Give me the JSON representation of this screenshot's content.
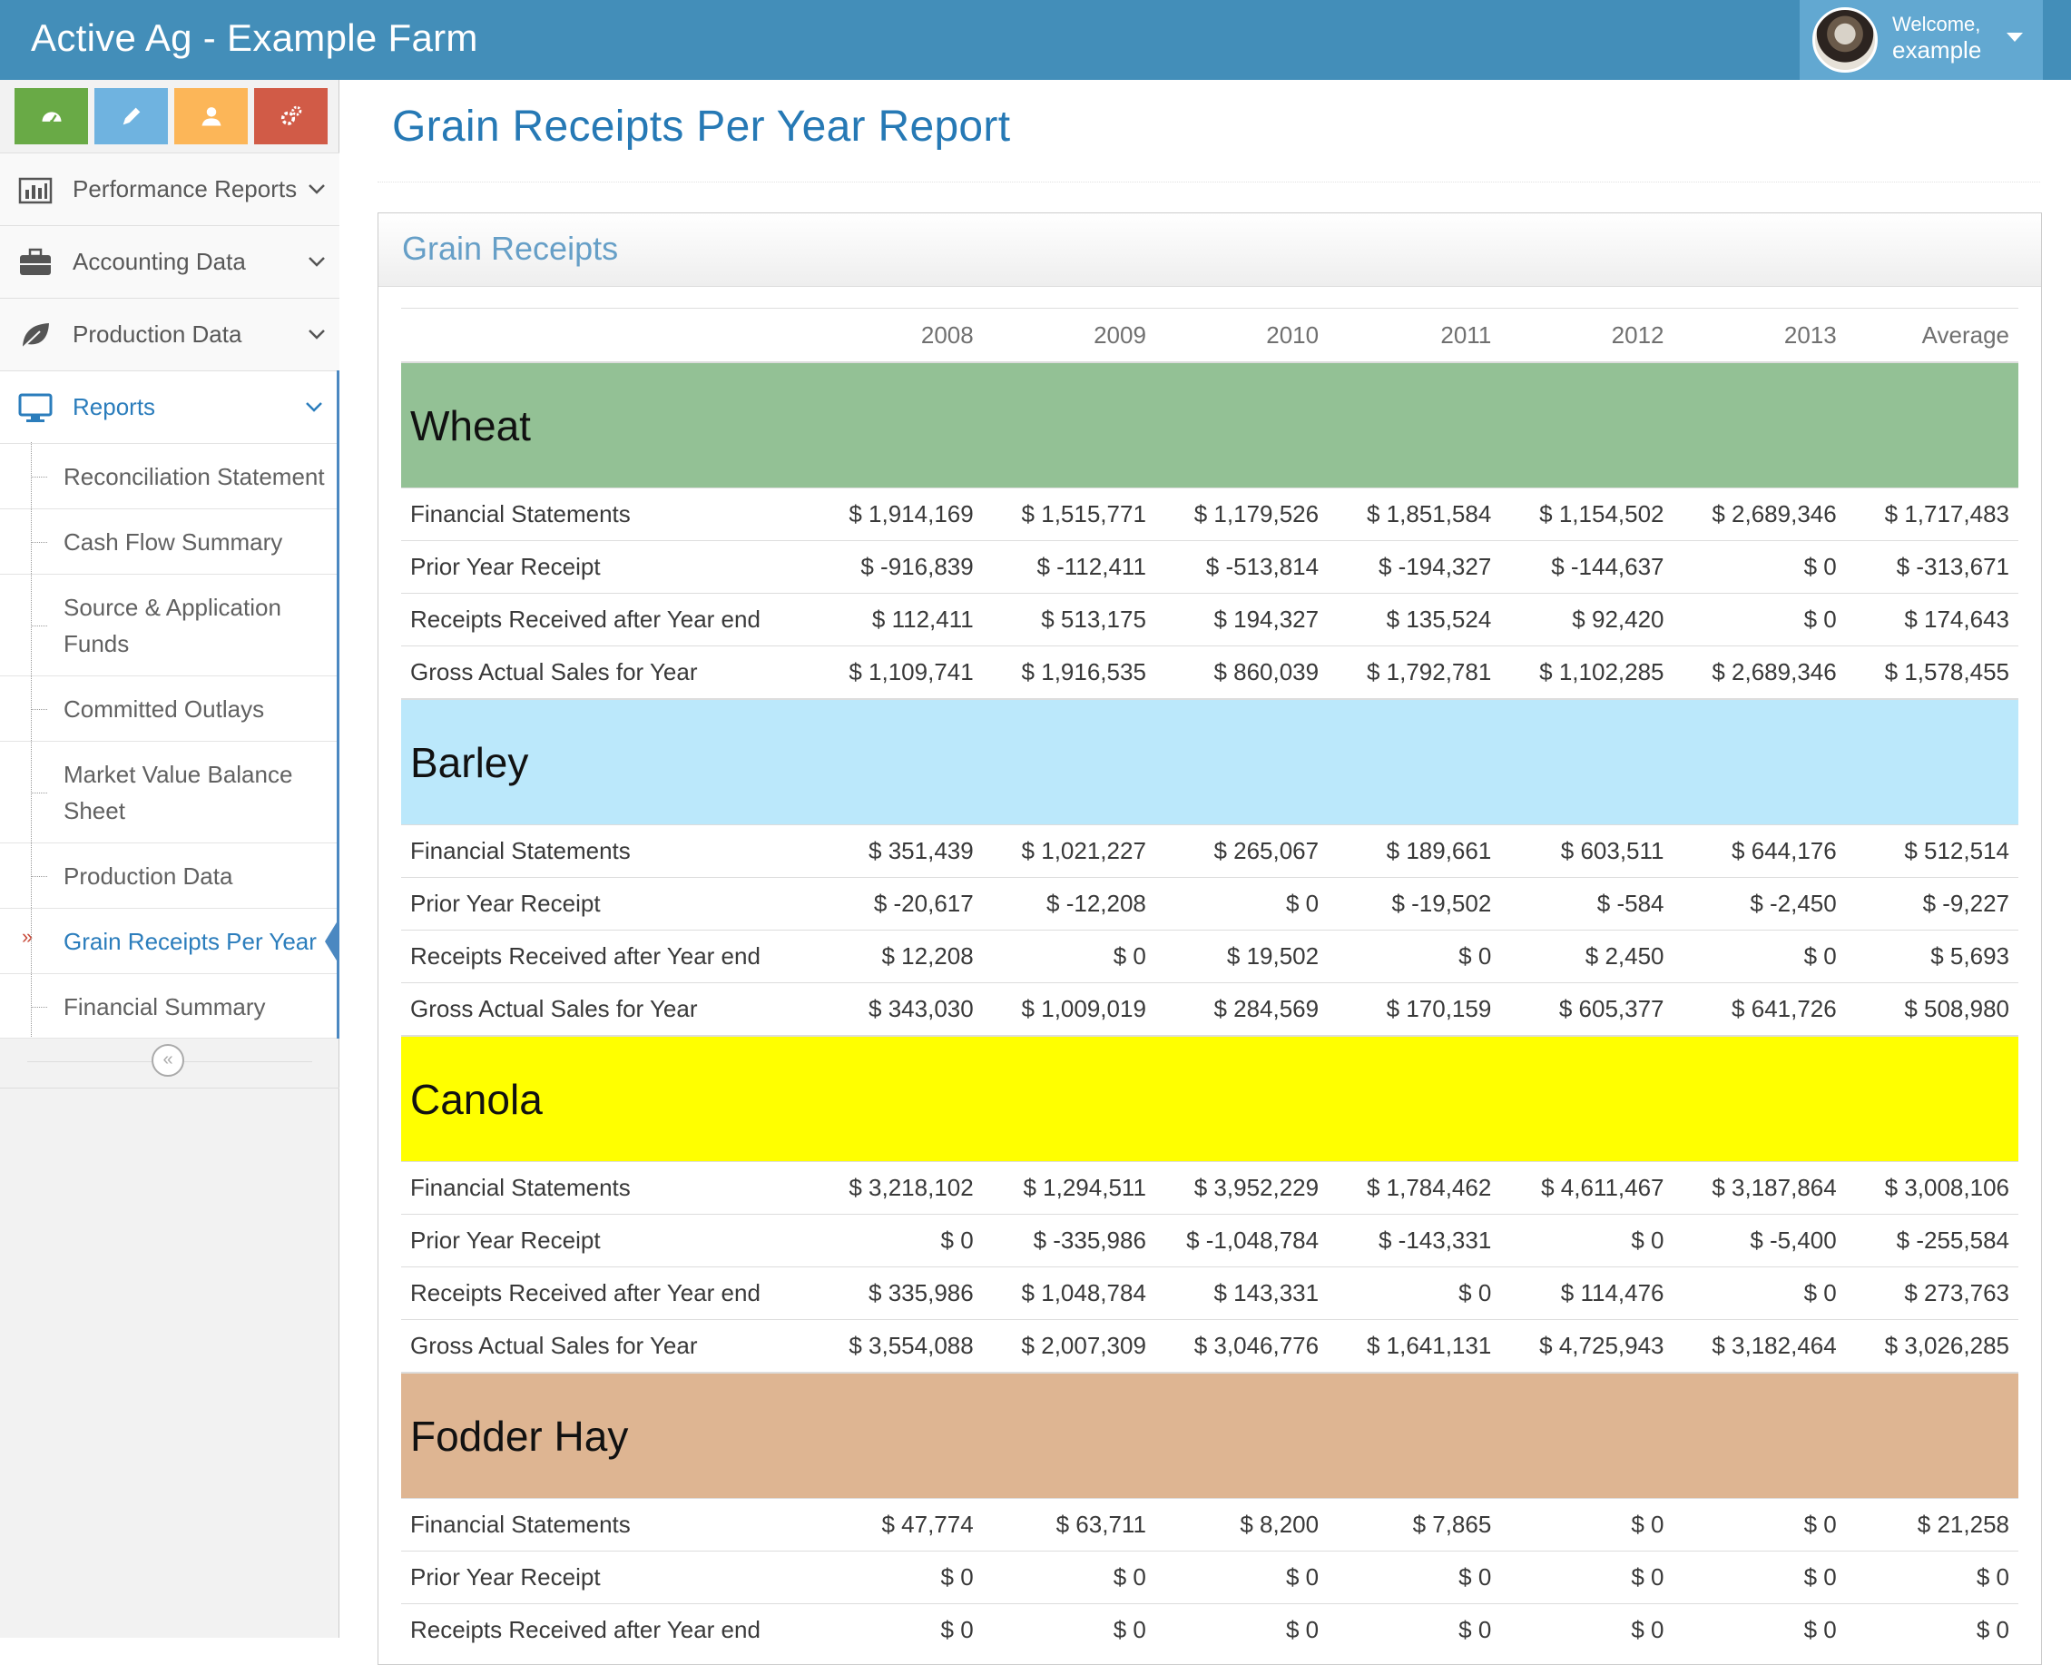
{
  "app": {
    "brand": "Active Ag - Example Farm"
  },
  "user": {
    "welcome": "Welcome,",
    "name": "example"
  },
  "shortcuts": [
    {
      "icon": "dashboard-icon",
      "color": "#69aa46"
    },
    {
      "icon": "pencil-icon",
      "color": "#6fb3e0"
    },
    {
      "icon": "user-icon",
      "color": "#fcb658"
    },
    {
      "icon": "cogs-icon",
      "color": "#d15b47"
    }
  ],
  "sidebar": {
    "items": [
      {
        "label": "Performance Reports",
        "icon": "bar-chart-icon"
      },
      {
        "label": "Accounting Data",
        "icon": "briefcase-icon"
      },
      {
        "label": "Production Data",
        "icon": "leaf-icon"
      },
      {
        "label": "Reports",
        "icon": "desktop-icon"
      }
    ],
    "submenu": [
      {
        "label": "Reconciliation Statement"
      },
      {
        "label": "Cash Flow Summary"
      },
      {
        "label": "Source & Application Funds"
      },
      {
        "label": "Committed Outlays"
      },
      {
        "label": "Market Value Balance Sheet"
      },
      {
        "label": "Production Data"
      },
      {
        "label": "Grain Receipts Per Year",
        "active": true
      },
      {
        "label": "Financial Summary"
      }
    ],
    "active_marker": "»",
    "collapse_glyph": "«"
  },
  "page": {
    "title": "Grain Receipts Per Year Report"
  },
  "widget": {
    "title": "Grain Receipts"
  },
  "table": {
    "columns": [
      "",
      "2008",
      "2009",
      "2010",
      "2011",
      "2012",
      "2013",
      "Average"
    ],
    "crops": [
      {
        "name": "Wheat",
        "color": "#93c195",
        "rows": [
          {
            "label": "Financial Statements",
            "values": [
              "$ 1,914,169",
              "$ 1,515,771",
              "$ 1,179,526",
              "$ 1,851,584",
              "$ 1,154,502",
              "$ 2,689,346",
              "$ 1,717,483"
            ]
          },
          {
            "label": "Prior Year Receipt",
            "values": [
              "$ -916,839",
              "$ -112,411",
              "$ -513,814",
              "$ -194,327",
              "$ -144,637",
              "$ 0",
              "$ -313,671"
            ]
          },
          {
            "label": "Receipts Received after Year end",
            "values": [
              "$ 112,411",
              "$ 513,175",
              "$ 194,327",
              "$ 135,524",
              "$ 92,420",
              "$ 0",
              "$ 174,643"
            ]
          },
          {
            "label": "Gross Actual Sales for Year",
            "values": [
              "$ 1,109,741",
              "$ 1,916,535",
              "$ 860,039",
              "$ 1,792,781",
              "$ 1,102,285",
              "$ 2,689,346",
              "$ 1,578,455"
            ]
          }
        ]
      },
      {
        "name": "Barley",
        "color": "#bbe8fb",
        "rows": [
          {
            "label": "Financial Statements",
            "values": [
              "$ 351,439",
              "$ 1,021,227",
              "$ 265,067",
              "$ 189,661",
              "$ 603,511",
              "$ 644,176",
              "$ 512,514"
            ]
          },
          {
            "label": "Prior Year Receipt",
            "values": [
              "$ -20,617",
              "$ -12,208",
              "$ 0",
              "$ -19,502",
              "$ -584",
              "$ -2,450",
              "$ -9,227"
            ]
          },
          {
            "label": "Receipts Received after Year end",
            "values": [
              "$ 12,208",
              "$ 0",
              "$ 19,502",
              "$ 0",
              "$ 2,450",
              "$ 0",
              "$ 5,693"
            ]
          },
          {
            "label": "Gross Actual Sales for Year",
            "values": [
              "$ 343,030",
              "$ 1,009,019",
              "$ 284,569",
              "$ 170,159",
              "$ 605,377",
              "$ 641,726",
              "$ 508,980"
            ]
          }
        ]
      },
      {
        "name": "Canola",
        "color": "#ffff00",
        "rows": [
          {
            "label": "Financial Statements",
            "values": [
              "$ 3,218,102",
              "$ 1,294,511",
              "$ 3,952,229",
              "$ 1,784,462",
              "$ 4,611,467",
              "$ 3,187,864",
              "$ 3,008,106"
            ]
          },
          {
            "label": "Prior Year Receipt",
            "values": [
              "$ 0",
              "$ -335,986",
              "$ -1,048,784",
              "$ -143,331",
              "$ 0",
              "$ -5,400",
              "$ -255,584"
            ]
          },
          {
            "label": "Receipts Received after Year end",
            "values": [
              "$ 335,986",
              "$ 1,048,784",
              "$ 143,331",
              "$ 0",
              "$ 114,476",
              "$ 0",
              "$ 273,763"
            ]
          },
          {
            "label": "Gross Actual Sales for Year",
            "values": [
              "$ 3,554,088",
              "$ 2,007,309",
              "$ 3,046,776",
              "$ 1,641,131",
              "$ 4,725,943",
              "$ 3,182,464",
              "$ 3,026,285"
            ]
          }
        ]
      },
      {
        "name": "Fodder Hay",
        "color": "#deb592",
        "rows": [
          {
            "label": "Financial Statements",
            "values": [
              "$ 47,774",
              "$ 63,711",
              "$ 8,200",
              "$ 7,865",
              "$ 0",
              "$ 0",
              "$ 21,258"
            ]
          },
          {
            "label": "Prior Year Receipt",
            "values": [
              "$ 0",
              "$ 0",
              "$ 0",
              "$ 0",
              "$ 0",
              "$ 0",
              "$ 0"
            ]
          },
          {
            "label": "Receipts Received after Year end",
            "values": [
              "$ 0",
              "$ 0",
              "$ 0",
              "$ 0",
              "$ 0",
              "$ 0",
              "$ 0"
            ]
          }
        ]
      }
    ]
  }
}
